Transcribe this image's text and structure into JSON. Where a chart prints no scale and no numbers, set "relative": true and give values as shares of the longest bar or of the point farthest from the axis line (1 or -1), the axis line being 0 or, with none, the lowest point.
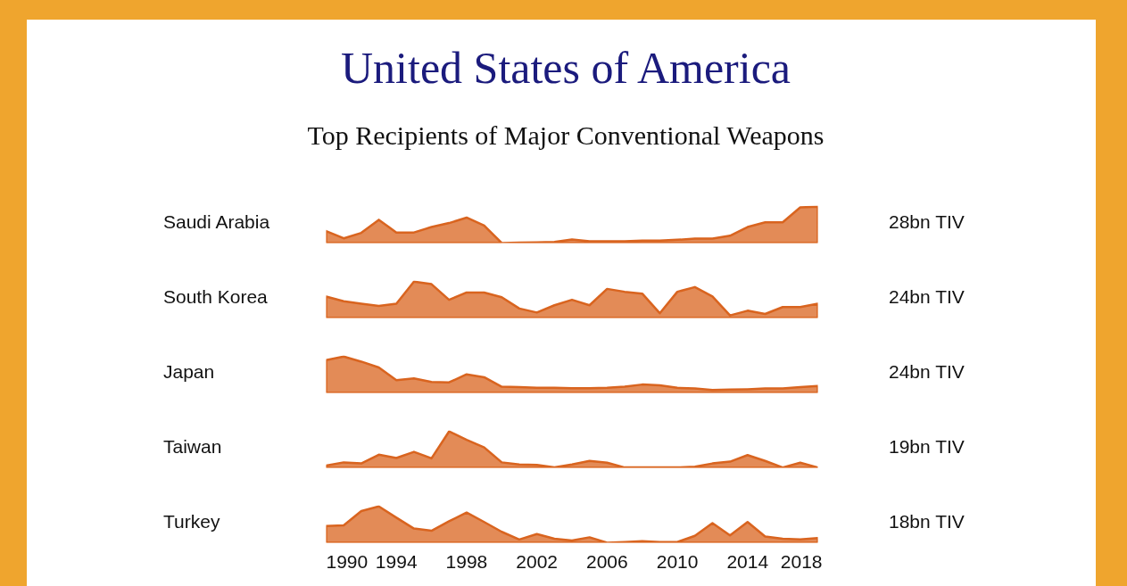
{
  "chart_data": [
    {
      "type": "area",
      "title": "United States of America",
      "subtitle": "Top Recipients of Major Conventional Weapons",
      "ylabel": "Saudi Arabia",
      "annotations": [
        "28bn TIV"
      ],
      "relative": true,
      "categories": [
        null,
        null,
        null,
        null,
        null,
        null,
        null,
        null,
        null,
        null,
        null,
        null,
        null,
        null,
        null,
        null,
        null,
        null,
        null,
        null,
        null,
        null,
        null,
        null,
        null,
        null,
        null,
        null,
        null
      ],
      "series": [
        {
          "color": "#d9641f",
          "values": [
            0.33,
            0.13,
            0.28,
            0.64,
            0.29,
            0.29,
            0.44,
            0.55,
            0.7,
            0.48,
            0,
            0.01,
            0.02,
            0.03,
            0.1,
            0.05,
            0.05,
            0.05,
            0.07,
            0.07,
            0.09,
            0.12,
            0.12,
            0.2,
            0.44,
            0.57,
            0.57,
            0.98,
            1
          ]
        }
      ]
    },
    {
      "type": "area",
      "ylabel": "South Korea",
      "annotations": [
        "24bn TIV"
      ],
      "relative": true,
      "categories": [
        null,
        null,
        null,
        null,
        null,
        null,
        null,
        null,
        null,
        null,
        null,
        null,
        null,
        null,
        null,
        null,
        null,
        null,
        null,
        null,
        null,
        null,
        null,
        null,
        null,
        null,
        null,
        null,
        null
      ],
      "series": [
        {
          "color": "#d9641f",
          "values": [
            0.59,
            0.46,
            0.39,
            0.33,
            0.39,
            1,
            0.93,
            0.5,
            0.7,
            0.7,
            0.57,
            0.26,
            0.15,
            0.35,
            0.5,
            0.35,
            0.8,
            0.72,
            0.67,
            0.13,
            0.72,
            0.85,
            0.59,
            0.07,
            0.2,
            0.11,
            0.3,
            0.3,
            0.39
          ]
        }
      ]
    },
    {
      "type": "area",
      "ylabel": "Japan",
      "annotations": [
        "24bn TIV"
      ],
      "relative": true,
      "categories": [
        null,
        null,
        null,
        null,
        null,
        null,
        null,
        null,
        null,
        null,
        null,
        null,
        null,
        null,
        null,
        null,
        null,
        null,
        null,
        null,
        null,
        null,
        null,
        null,
        null,
        null,
        null,
        null,
        null
      ],
      "series": [
        {
          "color": "#d9641f",
          "values": [
            0.9,
            1,
            0.86,
            0.7,
            0.35,
            0.4,
            0.3,
            0.29,
            0.51,
            0.43,
            0.17,
            0.16,
            0.14,
            0.14,
            0.13,
            0.13,
            0.14,
            0.17,
            0.23,
            0.21,
            0.14,
            0.12,
            0.08,
            0.09,
            0.1,
            0.12,
            0.12,
            0.16,
            0.19
          ]
        }
      ]
    },
    {
      "type": "area",
      "ylabel": "Taiwan",
      "annotations": [
        "19bn TIV"
      ],
      "relative": true,
      "categories": [
        null,
        null,
        null,
        null,
        null,
        null,
        null,
        null,
        null,
        null,
        null,
        null,
        null,
        null,
        null,
        null,
        null,
        null,
        null,
        null,
        null,
        null,
        null,
        null,
        null,
        null,
        null,
        null,
        null
      ],
      "series": [
        {
          "color": "#d9641f",
          "values": [
            0.06,
            0.15,
            0.12,
            0.36,
            0.27,
            0.44,
            0.26,
            1,
            0.77,
            0.56,
            0.15,
            0.09,
            0.08,
            0.01,
            0.09,
            0.19,
            0.14,
            0.01,
            0.01,
            0.01,
            0.01,
            0.03,
            0.12,
            0.17,
            0.35,
            0.19,
            0.01,
            0.14,
            0.01
          ]
        }
      ]
    },
    {
      "type": "area",
      "ylabel": "Turkey",
      "annotations": [
        "18bn TIV"
      ],
      "relative": true,
      "xlim": [
        1990,
        2018
      ],
      "xticks": [
        1990,
        1994,
        1998,
        2002,
        2006,
        2010,
        2014,
        2018
      ],
      "x": [
        1990,
        1991,
        1992,
        1993,
        1994,
        1995,
        1996,
        1997,
        1998,
        1999,
        2000,
        2001,
        2002,
        2003,
        2004,
        2005,
        2006,
        2007,
        2008,
        2009,
        2010,
        2011,
        2012,
        2013,
        2014,
        2015,
        2016,
        2017,
        2018
      ],
      "series": [
        {
          "color": "#d9641f",
          "values": [
            0.46,
            0.48,
            0.87,
            1,
            0.69,
            0.39,
            0.33,
            0.59,
            0.83,
            0.57,
            0.3,
            0.09,
            0.24,
            0.11,
            0.06,
            0.15,
            0,
            0.02,
            0.04,
            0.02,
            0.02,
            0.19,
            0.54,
            0.2,
            0.57,
            0.17,
            0.11,
            0.09,
            0.13
          ]
        }
      ]
    }
  ]
}
